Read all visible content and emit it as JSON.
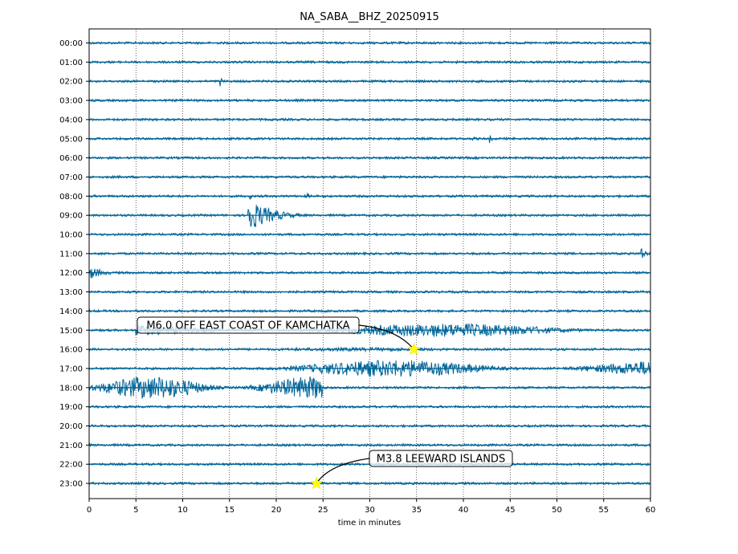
{
  "chart_data": {
    "type": "line",
    "title": "NA_SABA__BHZ_20250915",
    "xlabel": "time in minutes",
    "ylabel": "",
    "xlim": [
      0,
      60
    ],
    "x_ticks": [
      "0",
      "5",
      "10",
      "15",
      "20",
      "25",
      "30",
      "35",
      "40",
      "45",
      "50",
      "55",
      "60"
    ],
    "y_ticks": [
      "00:00",
      "01:00",
      "02:00",
      "03:00",
      "04:00",
      "05:00",
      "06:00",
      "07:00",
      "08:00",
      "09:00",
      "10:00",
      "11:00",
      "12:00",
      "13:00",
      "14:00",
      "15:00",
      "16:00",
      "17:00",
      "18:00",
      "19:00",
      "20:00",
      "21:00",
      "22:00",
      "23:00"
    ],
    "grid": "vertical dotted",
    "trace_color": "#006699",
    "marker_color": "#ffff00",
    "bursts": [
      {
        "hour": 2,
        "minute": 14.0,
        "duration": 0.4,
        "amplitude": 0.8
      },
      {
        "hour": 5,
        "minute": 41.0,
        "duration": 0.6,
        "amplitude": 0.3
      },
      {
        "hour": 5,
        "minute": 42.8,
        "duration": 0.8,
        "amplitude": 0.45
      },
      {
        "hour": 8,
        "minute": 23.2,
        "duration": 1.5,
        "amplitude": 0.35
      },
      {
        "hour": 8,
        "minute": 17.2,
        "duration": 0.3,
        "amplitude": 0.6
      },
      {
        "hour": 9,
        "minute": 17.0,
        "duration": 6.0,
        "amplitude": 1.8
      },
      {
        "hour": 11,
        "minute": 59.0,
        "duration": 1.0,
        "amplitude": 0.9
      },
      {
        "hour": 12,
        "minute": 0.0,
        "duration": 3.5,
        "amplitude": 0.75
      },
      {
        "hour": 15,
        "minute": 5.0,
        "duration": 55.0,
        "amplitude": 0.7
      },
      {
        "hour": 16,
        "minute": 0.0,
        "duration": 60.0,
        "amplitude": 0.2
      },
      {
        "hour": 17,
        "minute": 15.5,
        "duration": 44.5,
        "amplitude": 0.9
      },
      {
        "hour": 18,
        "minute": 0.0,
        "duration": 25.0,
        "amplitude": 1.2
      },
      {
        "hour": 23,
        "minute": 24.2,
        "duration": 1.5,
        "amplitude": 0.5
      }
    ],
    "annotations": [
      {
        "text": "M6.0 OFF EAST COAST OF KAMCHATKA",
        "hour": 16,
        "minute": 34.7
      },
      {
        "text": "M3.8 LEEWARD ISLANDS",
        "hour": 23,
        "minute": 24.3
      }
    ]
  }
}
